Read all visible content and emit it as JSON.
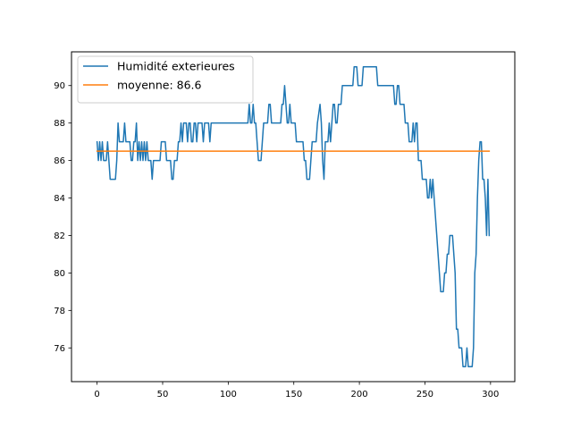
{
  "chart_data": {
    "type": "line",
    "title": "",
    "xlabel": "",
    "ylabel": "",
    "xlim": [
      -19.5,
      318.5
    ],
    "ylim": [
      74.2,
      91.8
    ],
    "x_ticks": [
      0,
      50,
      100,
      150,
      200,
      250,
      300
    ],
    "y_ticks": [
      76,
      78,
      80,
      82,
      84,
      86,
      88,
      90
    ],
    "legend_position": "top-left",
    "grid": false,
    "series": [
      {
        "name": "Humidité exterieures",
        "color": "#1f77b4",
        "points": [
          [
            0,
            87
          ],
          [
            1,
            86
          ],
          [
            2,
            87
          ],
          [
            3,
            86
          ],
          [
            4,
            87
          ],
          [
            5,
            86
          ],
          [
            6,
            86
          ],
          [
            7,
            86
          ],
          [
            8,
            87
          ],
          [
            9,
            86
          ],
          [
            10,
            85
          ],
          [
            11,
            85
          ],
          [
            12,
            85
          ],
          [
            13,
            85
          ],
          [
            14,
            85
          ],
          [
            15,
            86
          ],
          [
            16,
            88
          ],
          [
            17,
            87
          ],
          [
            18,
            87
          ],
          [
            19,
            87
          ],
          [
            20,
            87
          ],
          [
            21,
            88
          ],
          [
            22,
            87
          ],
          [
            23,
            87
          ],
          [
            24,
            87
          ],
          [
            25,
            87
          ],
          [
            26,
            86
          ],
          [
            27,
            86
          ],
          [
            28,
            87
          ],
          [
            29,
            87
          ],
          [
            30,
            88
          ],
          [
            31,
            86
          ],
          [
            32,
            87
          ],
          [
            33,
            86
          ],
          [
            34,
            87
          ],
          [
            35,
            86
          ],
          [
            36,
            87
          ],
          [
            37,
            86
          ],
          [
            38,
            87
          ],
          [
            39,
            86
          ],
          [
            40,
            86
          ],
          [
            41,
            86
          ],
          [
            42,
            85
          ],
          [
            43,
            86
          ],
          [
            44,
            86
          ],
          [
            45,
            86
          ],
          [
            46,
            86
          ],
          [
            47,
            86
          ],
          [
            48,
            86
          ],
          [
            49,
            87
          ],
          [
            50,
            87
          ],
          [
            51,
            87
          ],
          [
            52,
            87
          ],
          [
            53,
            86
          ],
          [
            54,
            86
          ],
          [
            55,
            86
          ],
          [
            56,
            86
          ],
          [
            57,
            85
          ],
          [
            58,
            85
          ],
          [
            59,
            86
          ],
          [
            60,
            86
          ],
          [
            61,
            86
          ],
          [
            62,
            87
          ],
          [
            63,
            87
          ],
          [
            64,
            88
          ],
          [
            65,
            87
          ],
          [
            66,
            88
          ],
          [
            67,
            88
          ],
          [
            68,
            88
          ],
          [
            69,
            87
          ],
          [
            70,
            88
          ],
          [
            71,
            88
          ],
          [
            72,
            87
          ],
          [
            73,
            87
          ],
          [
            74,
            88
          ],
          [
            75,
            88
          ],
          [
            76,
            87
          ],
          [
            77,
            88
          ],
          [
            78,
            88
          ],
          [
            79,
            88
          ],
          [
            80,
            88
          ],
          [
            81,
            87
          ],
          [
            82,
            88
          ],
          [
            83,
            88
          ],
          [
            84,
            88
          ],
          [
            85,
            88
          ],
          [
            86,
            87
          ],
          [
            87,
            88
          ],
          [
            88,
            88
          ],
          [
            89,
            88
          ],
          [
            90,
            88
          ],
          [
            91,
            88
          ],
          [
            92,
            88
          ],
          [
            93,
            88
          ],
          [
            94,
            88
          ],
          [
            95,
            88
          ],
          [
            96,
            88
          ],
          [
            97,
            88
          ],
          [
            98,
            88
          ],
          [
            99,
            88
          ],
          [
            100,
            88
          ],
          [
            101,
            88
          ],
          [
            102,
            88
          ],
          [
            103,
            88
          ],
          [
            104,
            88
          ],
          [
            105,
            88
          ],
          [
            106,
            88
          ],
          [
            107,
            88
          ],
          [
            108,
            88
          ],
          [
            109,
            88
          ],
          [
            110,
            88
          ],
          [
            111,
            88
          ],
          [
            112,
            88
          ],
          [
            113,
            88
          ],
          [
            114,
            88
          ],
          [
            115,
            88
          ],
          [
            116,
            89
          ],
          [
            117,
            88
          ],
          [
            118,
            88
          ],
          [
            119,
            89
          ],
          [
            120,
            88
          ],
          [
            121,
            88
          ],
          [
            122,
            87
          ],
          [
            123,
            86
          ],
          [
            124,
            86
          ],
          [
            125,
            86
          ],
          [
            126,
            87
          ],
          [
            127,
            88
          ],
          [
            128,
            88
          ],
          [
            129,
            88
          ],
          [
            130,
            88
          ],
          [
            131,
            89
          ],
          [
            132,
            89
          ],
          [
            133,
            88
          ],
          [
            134,
            88
          ],
          [
            135,
            88
          ],
          [
            136,
            88
          ],
          [
            137,
            88
          ],
          [
            138,
            88
          ],
          [
            139,
            88
          ],
          [
            140,
            88
          ],
          [
            141,
            89
          ],
          [
            142,
            89
          ],
          [
            143,
            90
          ],
          [
            144,
            89
          ],
          [
            145,
            88
          ],
          [
            146,
            88
          ],
          [
            147,
            89
          ],
          [
            148,
            88
          ],
          [
            149,
            88
          ],
          [
            150,
            88
          ],
          [
            151,
            88
          ],
          [
            152,
            87
          ],
          [
            153,
            87
          ],
          [
            154,
            87
          ],
          [
            155,
            87
          ],
          [
            156,
            87
          ],
          [
            157,
            87
          ],
          [
            158,
            86
          ],
          [
            159,
            86
          ],
          [
            160,
            85
          ],
          [
            161,
            85
          ],
          [
            162,
            85
          ],
          [
            163,
            86
          ],
          [
            164,
            87
          ],
          [
            165,
            87
          ],
          [
            166,
            87
          ],
          [
            167,
            87
          ],
          [
            168,
            88
          ],
          [
            169,
            88.5
          ],
          [
            170,
            89
          ],
          [
            171,
            88
          ],
          [
            172,
            86
          ],
          [
            173,
            85
          ],
          [
            174,
            87
          ],
          [
            175,
            87
          ],
          [
            176,
            87
          ],
          [
            177,
            88
          ],
          [
            178,
            87
          ],
          [
            179,
            88
          ],
          [
            180,
            89
          ],
          [
            181,
            89
          ],
          [
            182,
            88
          ],
          [
            183,
            88
          ],
          [
            184,
            89
          ],
          [
            185,
            89
          ],
          [
            186,
            89
          ],
          [
            187,
            90
          ],
          [
            188,
            90
          ],
          [
            189,
            90
          ],
          [
            190,
            90
          ],
          [
            191,
            90
          ],
          [
            192,
            90
          ],
          [
            193,
            90
          ],
          [
            194,
            90
          ],
          [
            195,
            90
          ],
          [
            196,
            91
          ],
          [
            197,
            91
          ],
          [
            198,
            91
          ],
          [
            199,
            90
          ],
          [
            200,
            90
          ],
          [
            201,
            90
          ],
          [
            202,
            90
          ],
          [
            203,
            91
          ],
          [
            204,
            91
          ],
          [
            205,
            91
          ],
          [
            206,
            91
          ],
          [
            207,
            91
          ],
          [
            208,
            91
          ],
          [
            209,
            91
          ],
          [
            210,
            91
          ],
          [
            211,
            91
          ],
          [
            212,
            91
          ],
          [
            213,
            91
          ],
          [
            214,
            90
          ],
          [
            215,
            90
          ],
          [
            216,
            90
          ],
          [
            217,
            90
          ],
          [
            218,
            90
          ],
          [
            219,
            90
          ],
          [
            220,
            90
          ],
          [
            221,
            90
          ],
          [
            222,
            90
          ],
          [
            223,
            90
          ],
          [
            224,
            90
          ],
          [
            225,
            90
          ],
          [
            226,
            90
          ],
          [
            227,
            89
          ],
          [
            228,
            89
          ],
          [
            229,
            90
          ],
          [
            230,
            90
          ],
          [
            231,
            89
          ],
          [
            232,
            89
          ],
          [
            233,
            89
          ],
          [
            234,
            89
          ],
          [
            235,
            88
          ],
          [
            236,
            88
          ],
          [
            237,
            88
          ],
          [
            238,
            87
          ],
          [
            239,
            87
          ],
          [
            240,
            87
          ],
          [
            241,
            88
          ],
          [
            242,
            87
          ],
          [
            243,
            88
          ],
          [
            244,
            88
          ],
          [
            245,
            86
          ],
          [
            246,
            86
          ],
          [
            247,
            86
          ],
          [
            248,
            85
          ],
          [
            249,
            85
          ],
          [
            250,
            85
          ],
          [
            251,
            85
          ],
          [
            252,
            84
          ],
          [
            253,
            84
          ],
          [
            254,
            85
          ],
          [
            255,
            84
          ],
          [
            256,
            85
          ],
          [
            257,
            84
          ],
          [
            258,
            83
          ],
          [
            259,
            82
          ],
          [
            260,
            81
          ],
          [
            261,
            80
          ],
          [
            262,
            79
          ],
          [
            263,
            79
          ],
          [
            264,
            79
          ],
          [
            265,
            80
          ],
          [
            266,
            80
          ],
          [
            267,
            81
          ],
          [
            268,
            81
          ],
          [
            269,
            82
          ],
          [
            270,
            82
          ],
          [
            271,
            82
          ],
          [
            272,
            81
          ],
          [
            273,
            80
          ],
          [
            274,
            77
          ],
          [
            275,
            77
          ],
          [
            276,
            76
          ],
          [
            277,
            76
          ],
          [
            278,
            76
          ],
          [
            279,
            75
          ],
          [
            280,
            75
          ],
          [
            281,
            75
          ],
          [
            282,
            76
          ],
          [
            283,
            75
          ],
          [
            284,
            75
          ],
          [
            285,
            75
          ],
          [
            286,
            75
          ],
          [
            287,
            76
          ],
          [
            288,
            80
          ],
          [
            289,
            81
          ],
          [
            290,
            84
          ],
          [
            291,
            86
          ],
          [
            292,
            87
          ],
          [
            293,
            87
          ],
          [
            294,
            85
          ],
          [
            295,
            85
          ],
          [
            296,
            84
          ],
          [
            297,
            82
          ],
          [
            298,
            85
          ],
          [
            299,
            82
          ]
        ]
      },
      {
        "name": "moyenne: 86.6",
        "color": "#ff7f0e",
        "points": [
          [
            0,
            86.5
          ],
          [
            299,
            86.5
          ]
        ]
      }
    ]
  }
}
